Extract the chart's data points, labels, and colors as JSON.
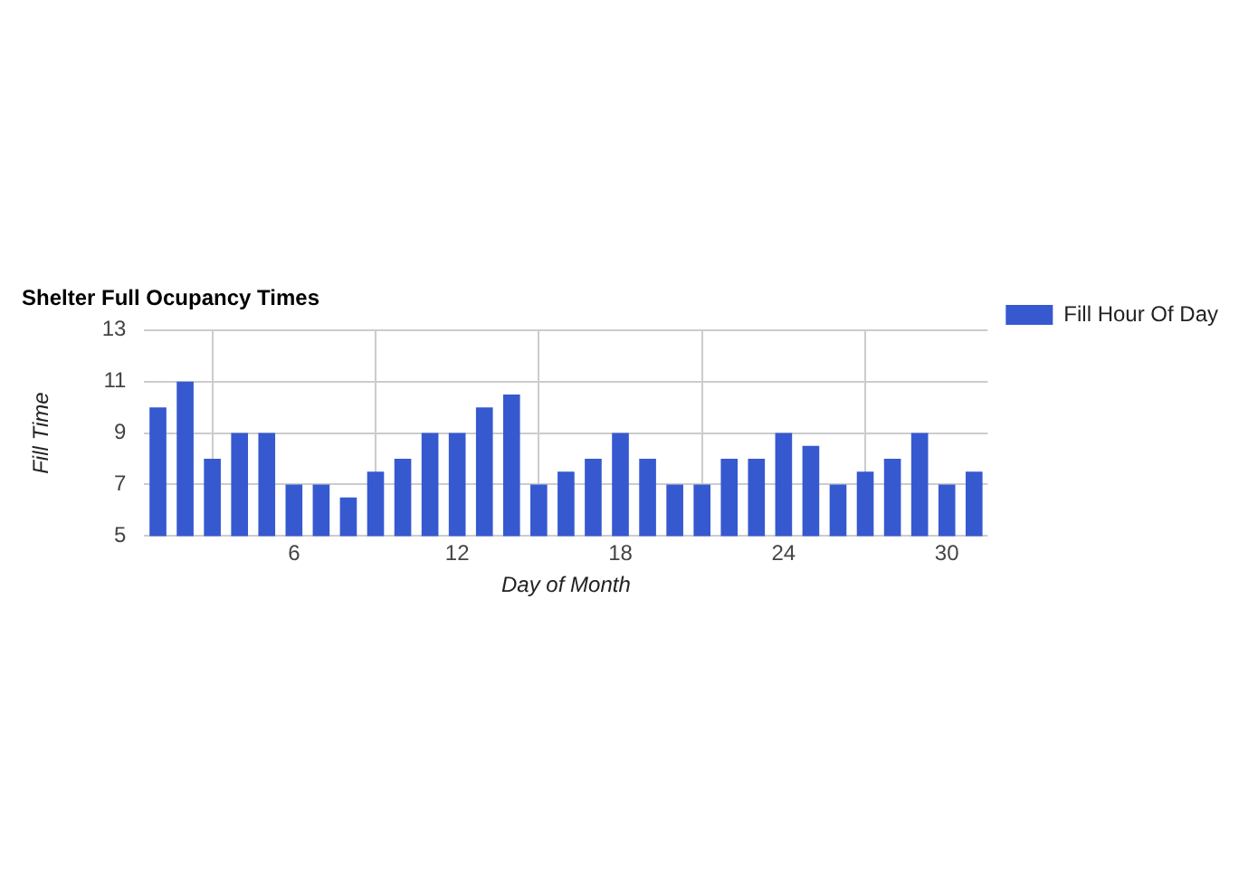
{
  "chart_data": {
    "type": "bar",
    "title": "Shelter Full Ocupancy Times",
    "xlabel": "Day of Month",
    "ylabel": "Fill Time",
    "x": [
      1,
      2,
      3,
      4,
      5,
      6,
      7,
      8,
      9,
      10,
      11,
      12,
      13,
      14,
      15,
      16,
      17,
      18,
      19,
      20,
      21,
      22,
      23,
      24,
      25,
      26,
      27,
      28,
      29,
      30,
      31
    ],
    "series": [
      {
        "name": "Fill Hour Of Day",
        "color": "#3659d0",
        "values": [
          10,
          11,
          8,
          9,
          9,
          7,
          7,
          6.5,
          7.5,
          8,
          9,
          9,
          10,
          10.5,
          7,
          7.5,
          8,
          9,
          8,
          7,
          7,
          8,
          8,
          9,
          8.5,
          7,
          7.5,
          8,
          9,
          7,
          7.5
        ]
      }
    ],
    "xlim": [
      0.5,
      31.5
    ],
    "xticks": [
      6,
      12,
      18,
      24,
      30
    ],
    "ylim": [
      5,
      13
    ],
    "yticks": [
      5,
      7,
      9,
      11,
      13
    ],
    "grid": true,
    "legend": "right"
  }
}
